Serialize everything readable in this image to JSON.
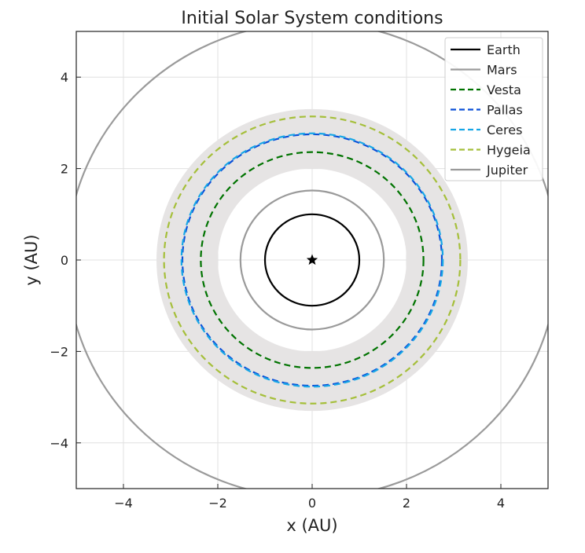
{
  "chart_data": {
    "type": "line",
    "title": "Initial Solar System conditions",
    "xlabel": "x (AU)",
    "ylabel": "y (AU)",
    "xlim": [
      -5,
      5
    ],
    "ylim": [
      -5,
      5
    ],
    "x_ticks": [
      -4,
      -2,
      0,
      2,
      4
    ],
    "y_ticks": [
      -4,
      -2,
      0,
      2,
      4
    ],
    "grid": true,
    "legend_position": "top-right",
    "background_band": {
      "inner_radius": 2.0,
      "outer_radius": 3.3,
      "color": "#e6e4e4"
    },
    "central_body_marker": "star",
    "series": [
      {
        "name": "Earth",
        "shape": "circle",
        "radius": 1.0,
        "color": "#000000",
        "linestyle": "solid"
      },
      {
        "name": "Mars",
        "shape": "circle",
        "radius": 1.52,
        "color": "#9a9a9a",
        "linestyle": "solid"
      },
      {
        "name": "Vesta",
        "shape": "circle",
        "radius": 2.36,
        "color": "#007300",
        "linestyle": "dashed"
      },
      {
        "name": "Pallas",
        "shape": "circle",
        "radius": 2.75,
        "color": "#0a4fd8",
        "linestyle": "dashed"
      },
      {
        "name": "Ceres",
        "shape": "circle",
        "radius": 2.77,
        "color": "#17a6e6",
        "linestyle": "dashed"
      },
      {
        "name": "Hygeia",
        "shape": "circle",
        "radius": 3.14,
        "color": "#a5bf3a",
        "linestyle": "dashed"
      },
      {
        "name": "Jupiter",
        "shape": "circle",
        "radius": 5.2,
        "color": "#9a9a9a",
        "linestyle": "solid"
      }
    ]
  }
}
